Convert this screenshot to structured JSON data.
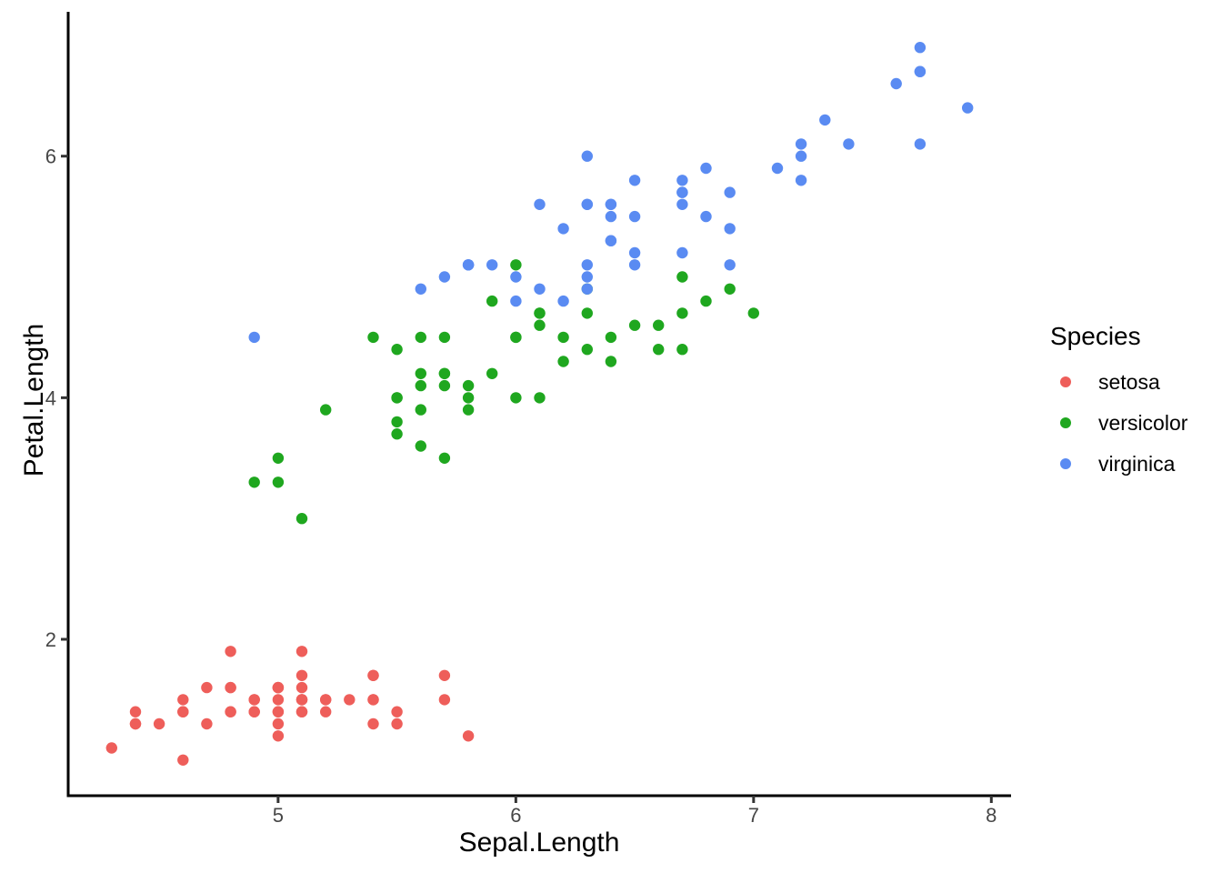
{
  "figure": {
    "background": "#ffffff"
  },
  "chart_data": {
    "type": "scatter",
    "title": "",
    "xlabel": "Sepal.Length",
    "ylabel": "Petal.Length",
    "xlim": [
      4.117,
      8.083
    ],
    "ylim": [
      0.705,
      7.195
    ],
    "x_ticks": [
      "5",
      "6",
      "7",
      "8"
    ],
    "x_tick_values": [
      5,
      6,
      7,
      8
    ],
    "y_ticks": [
      "2",
      "4",
      "6"
    ],
    "y_tick_values": [
      2,
      4,
      6
    ],
    "grid": "off",
    "theme": "classic",
    "legend_position": "right",
    "legend_title": "Species",
    "axis_line_color": "#000000",
    "tick_color": "#333333",
    "tick_label_color": "#474747",
    "series": [
      {
        "name": "setosa",
        "color": "#EE5E5A",
        "points": [
          [
            5.1,
            1.4
          ],
          [
            4.9,
            1.4
          ],
          [
            4.7,
            1.3
          ],
          [
            4.6,
            1.5
          ],
          [
            5.0,
            1.4
          ],
          [
            5.4,
            1.7
          ],
          [
            4.6,
            1.4
          ],
          [
            5.0,
            1.5
          ],
          [
            4.4,
            1.4
          ],
          [
            4.9,
            1.5
          ],
          [
            5.4,
            1.5
          ],
          [
            4.8,
            1.6
          ],
          [
            4.8,
            1.4
          ],
          [
            4.3,
            1.1
          ],
          [
            5.8,
            1.2
          ],
          [
            5.7,
            1.5
          ],
          [
            5.4,
            1.3
          ],
          [
            5.1,
            1.4
          ],
          [
            5.7,
            1.7
          ],
          [
            5.1,
            1.5
          ],
          [
            5.4,
            1.7
          ],
          [
            5.1,
            1.5
          ],
          [
            4.6,
            1.0
          ],
          [
            5.1,
            1.7
          ],
          [
            4.8,
            1.9
          ],
          [
            5.0,
            1.6
          ],
          [
            5.0,
            1.6
          ],
          [
            5.2,
            1.5
          ],
          [
            5.2,
            1.4
          ],
          [
            4.7,
            1.6
          ],
          [
            4.8,
            1.6
          ],
          [
            5.4,
            1.5
          ],
          [
            5.2,
            1.5
          ],
          [
            5.5,
            1.4
          ],
          [
            4.9,
            1.5
          ],
          [
            5.0,
            1.2
          ],
          [
            5.5,
            1.3
          ],
          [
            4.9,
            1.4
          ],
          [
            4.4,
            1.3
          ],
          [
            5.1,
            1.5
          ],
          [
            5.0,
            1.3
          ],
          [
            4.5,
            1.3
          ],
          [
            4.4,
            1.3
          ],
          [
            5.0,
            1.6
          ],
          [
            5.1,
            1.9
          ],
          [
            4.8,
            1.4
          ],
          [
            5.1,
            1.6
          ],
          [
            4.6,
            1.4
          ],
          [
            5.3,
            1.5
          ],
          [
            5.0,
            1.4
          ]
        ]
      },
      {
        "name": "versicolor",
        "color": "#1FA71F",
        "points": [
          [
            7.0,
            4.7
          ],
          [
            6.4,
            4.5
          ],
          [
            6.9,
            4.9
          ],
          [
            5.5,
            4.0
          ],
          [
            6.5,
            4.6
          ],
          [
            5.7,
            4.5
          ],
          [
            6.3,
            4.7
          ],
          [
            4.9,
            3.3
          ],
          [
            6.6,
            4.6
          ],
          [
            5.2,
            3.9
          ],
          [
            5.0,
            3.5
          ],
          [
            5.9,
            4.2
          ],
          [
            6.0,
            4.0
          ],
          [
            6.1,
            4.7
          ],
          [
            5.6,
            3.6
          ],
          [
            6.7,
            4.4
          ],
          [
            5.6,
            4.5
          ],
          [
            5.8,
            4.1
          ],
          [
            6.2,
            4.5
          ],
          [
            5.6,
            3.9
          ],
          [
            5.9,
            4.8
          ],
          [
            6.1,
            4.0
          ],
          [
            6.3,
            4.9
          ],
          [
            6.1,
            4.7
          ],
          [
            6.4,
            4.3
          ],
          [
            6.6,
            4.4
          ],
          [
            6.8,
            4.8
          ],
          [
            6.7,
            5.0
          ],
          [
            6.0,
            4.5
          ],
          [
            5.7,
            3.5
          ],
          [
            5.5,
            3.8
          ],
          [
            5.5,
            3.7
          ],
          [
            5.8,
            3.9
          ],
          [
            6.0,
            5.1
          ],
          [
            5.4,
            4.5
          ],
          [
            6.0,
            4.5
          ],
          [
            6.7,
            4.7
          ],
          [
            6.3,
            4.4
          ],
          [
            5.6,
            4.1
          ],
          [
            5.5,
            4.0
          ],
          [
            5.5,
            4.4
          ],
          [
            6.1,
            4.6
          ],
          [
            5.8,
            4.0
          ],
          [
            5.0,
            3.3
          ],
          [
            5.6,
            4.2
          ],
          [
            5.7,
            4.2
          ],
          [
            5.7,
            4.2
          ],
          [
            6.2,
            4.3
          ],
          [
            5.1,
            3.0
          ],
          [
            5.7,
            4.1
          ]
        ]
      },
      {
        "name": "virginica",
        "color": "#5A8BF2",
        "points": [
          [
            6.3,
            6.0
          ],
          [
            5.8,
            5.1
          ],
          [
            7.1,
            5.9
          ],
          [
            6.3,
            5.6
          ],
          [
            6.5,
            5.8
          ],
          [
            7.6,
            6.6
          ],
          [
            4.9,
            4.5
          ],
          [
            7.3,
            6.3
          ],
          [
            6.7,
            5.8
          ],
          [
            7.2,
            6.1
          ],
          [
            6.5,
            5.1
          ],
          [
            6.4,
            5.3
          ],
          [
            6.8,
            5.5
          ],
          [
            5.7,
            5.0
          ],
          [
            5.8,
            5.1
          ],
          [
            6.4,
            5.3
          ],
          [
            6.5,
            5.5
          ],
          [
            7.7,
            6.7
          ],
          [
            7.7,
            6.9
          ],
          [
            6.0,
            5.0
          ],
          [
            6.9,
            5.7
          ],
          [
            5.6,
            4.9
          ],
          [
            7.7,
            6.7
          ],
          [
            6.3,
            4.9
          ],
          [
            6.7,
            5.7
          ],
          [
            7.2,
            6.0
          ],
          [
            6.2,
            4.8
          ],
          [
            6.1,
            4.9
          ],
          [
            6.4,
            5.6
          ],
          [
            7.2,
            5.8
          ],
          [
            7.4,
            6.1
          ],
          [
            7.9,
            6.4
          ],
          [
            6.4,
            5.6
          ],
          [
            6.3,
            5.1
          ],
          [
            6.1,
            5.6
          ],
          [
            7.7,
            6.1
          ],
          [
            6.3,
            5.6
          ],
          [
            6.4,
            5.5
          ],
          [
            6.0,
            4.8
          ],
          [
            6.9,
            5.4
          ],
          [
            6.7,
            5.6
          ],
          [
            6.9,
            5.1
          ],
          [
            5.8,
            5.1
          ],
          [
            6.8,
            5.9
          ],
          [
            6.7,
            5.7
          ],
          [
            6.7,
            5.2
          ],
          [
            6.3,
            5.0
          ],
          [
            6.5,
            5.2
          ],
          [
            6.2,
            5.4
          ],
          [
            5.9,
            5.1
          ]
        ]
      }
    ]
  }
}
